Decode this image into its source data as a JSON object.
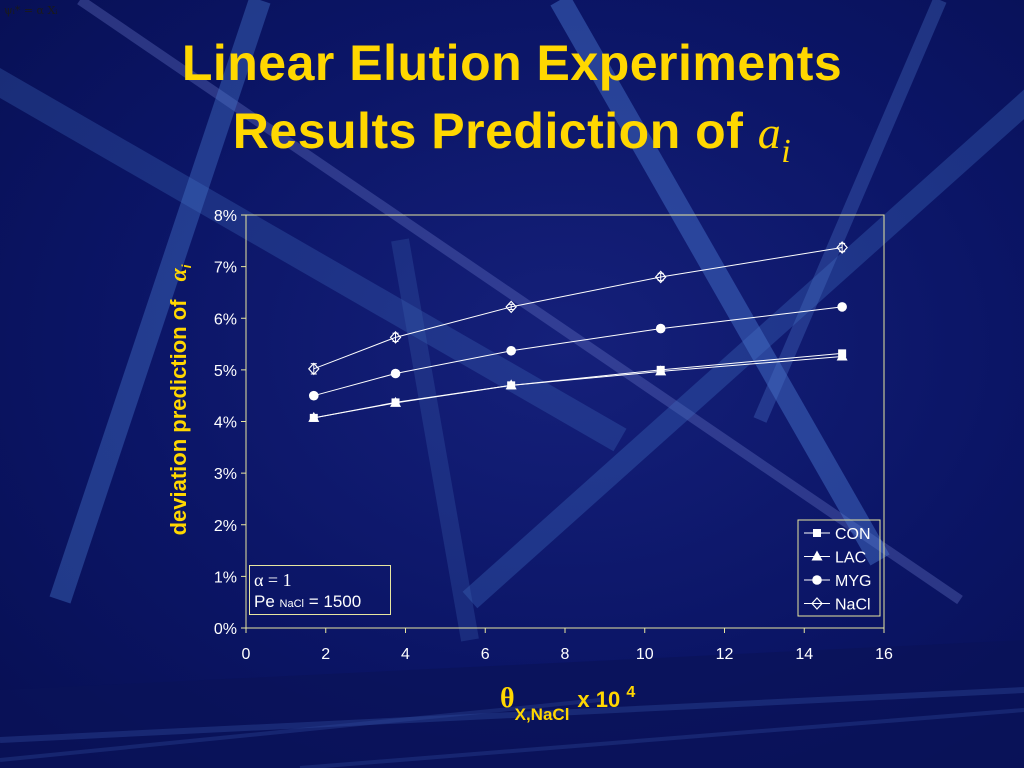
{
  "slide": {
    "corner_note": "ψᵢ* = α Xᵢ",
    "title_line1": "Linear Elution Experiments",
    "title_line2": "Results Prediction of",
    "title_symbol": "a",
    "title_subscript": "i"
  },
  "axes": {
    "ylabel_text": "deviation  prediction of",
    "ylabel_symbol": "α",
    "ylabel_subscript": "i",
    "xlabel_symbol": "θ",
    "xlabel_subscript": "X,NaCl",
    "xlabel_times": "x 10",
    "xlabel_exponent": "4"
  },
  "note": {
    "alpha_line": "α = 1",
    "pe_main": "Pe",
    "pe_sub": "NaCl",
    "pe_value": "= 1500"
  },
  "colors": {
    "accent": "#ffd700",
    "series": "#ffffff",
    "frame": "#e8e6a0",
    "background": "#0b1566"
  },
  "chart_data": {
    "type": "line",
    "xlim": [
      0,
      16
    ],
    "ylim": [
      0,
      8
    ],
    "x_ticks": [
      "0",
      "2",
      "4",
      "6",
      "8",
      "10",
      "12",
      "14",
      "16"
    ],
    "x_tick_values": [
      0,
      2,
      4,
      6,
      8,
      10,
      12,
      14,
      16
    ],
    "y_ticks": [
      "0%",
      "1%",
      "2%",
      "3%",
      "4%",
      "5%",
      "6%",
      "7%",
      "8%"
    ],
    "y_tick_values": [
      0,
      1,
      2,
      3,
      4,
      5,
      6,
      7,
      8
    ],
    "x": [
      1.7,
      3.75,
      6.65,
      10.4,
      14.95
    ],
    "series": [
      {
        "name": "CON",
        "marker": "square",
        "values": [
          4.07,
          4.37,
          4.7,
          5.0,
          5.32
        ]
      },
      {
        "name": "LAC",
        "marker": "triangle",
        "values": [
          4.07,
          4.36,
          4.7,
          4.97,
          5.26
        ]
      },
      {
        "name": "MYG",
        "marker": "circle",
        "values": [
          4.5,
          4.93,
          5.37,
          5.8,
          6.22
        ]
      },
      {
        "name": "NaCl",
        "marker": "diamond",
        "values": [
          5.02,
          5.63,
          6.22,
          6.8,
          7.37
        ],
        "error": [
          0.1,
          0.08,
          0.05,
          0.07,
          0.08
        ]
      }
    ],
    "legend": "bottom-right",
    "grid": false
  }
}
